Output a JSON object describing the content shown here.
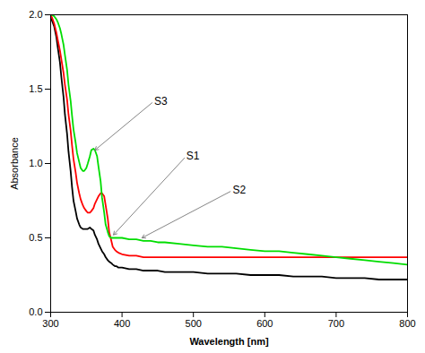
{
  "chart_data": {
    "type": "line",
    "x_label": "Wavelength [nm]",
    "y_label": "Absorbance",
    "xlim": [
      300,
      800
    ],
    "ylim": [
      0.0,
      2.0
    ],
    "xticks": [
      300,
      400,
      500,
      600,
      700,
      800
    ],
    "yticks": [
      {
        "value": 0.0,
        "label": "0.0"
      },
      0.5,
      {
        "value": 1.0,
        "label": "1.0"
      },
      1.5,
      {
        "value": 2.0,
        "label": "2.0"
      }
    ],
    "x": [
      300,
      302,
      305,
      308,
      310,
      313,
      315,
      318,
      320,
      323,
      325,
      328,
      330,
      332,
      335,
      337,
      340,
      342,
      345,
      347,
      350,
      352,
      355,
      357,
      360,
      362,
      365,
      367,
      370,
      372,
      375,
      377,
      380,
      382,
      385,
      387,
      390,
      392,
      395,
      400,
      410,
      420,
      430,
      440,
      450,
      460,
      480,
      500,
      520,
      540,
      560,
      580,
      600,
      620,
      640,
      660,
      680,
      700,
      720,
      740,
      760,
      780,
      800
    ],
    "series": [
      {
        "color": "#000000",
        "values": [
          1.98,
          1.96,
          1.92,
          1.85,
          1.78,
          1.68,
          1.58,
          1.45,
          1.33,
          1.2,
          1.08,
          0.95,
          0.84,
          0.75,
          0.68,
          0.63,
          0.59,
          0.57,
          0.56,
          0.56,
          0.56,
          0.56,
          0.57,
          0.56,
          0.55,
          0.52,
          0.49,
          0.46,
          0.43,
          0.41,
          0.39,
          0.37,
          0.35,
          0.34,
          0.33,
          0.32,
          0.31,
          0.31,
          0.3,
          0.3,
          0.29,
          0.29,
          0.28,
          0.28,
          0.28,
          0.27,
          0.27,
          0.27,
          0.26,
          0.26,
          0.26,
          0.25,
          0.25,
          0.25,
          0.24,
          0.24,
          0.24,
          0.23,
          0.23,
          0.23,
          0.22,
          0.22,
          0.22
        ]
      },
      {
        "color": "#ff0000",
        "values": [
          2.0,
          1.98,
          1.94,
          1.88,
          1.83,
          1.76,
          1.7,
          1.61,
          1.53,
          1.43,
          1.33,
          1.22,
          1.12,
          1.03,
          0.94,
          0.87,
          0.8,
          0.76,
          0.72,
          0.7,
          0.68,
          0.67,
          0.67,
          0.68,
          0.7,
          0.73,
          0.76,
          0.78,
          0.8,
          0.8,
          0.78,
          0.72,
          0.63,
          0.54,
          0.48,
          0.44,
          0.42,
          0.41,
          0.4,
          0.39,
          0.38,
          0.38,
          0.37,
          0.37,
          0.37,
          0.37,
          0.37,
          0.37,
          0.37,
          0.37,
          0.37,
          0.37,
          0.37,
          0.37,
          0.37,
          0.37,
          0.37,
          0.37,
          0.37,
          0.37,
          0.37,
          0.37,
          0.37
        ]
      },
      {
        "color": "#00dd00",
        "values": [
          2.0,
          2.0,
          1.99,
          1.97,
          1.95,
          1.91,
          1.87,
          1.8,
          1.73,
          1.63,
          1.53,
          1.42,
          1.32,
          1.23,
          1.14,
          1.07,
          1.01,
          0.97,
          0.95,
          0.95,
          0.97,
          1.0,
          1.05,
          1.09,
          1.1,
          1.09,
          1.05,
          0.98,
          0.88,
          0.77,
          0.67,
          0.59,
          0.54,
          0.51,
          0.5,
          0.5,
          0.5,
          0.5,
          0.5,
          0.5,
          0.49,
          0.49,
          0.48,
          0.48,
          0.47,
          0.47,
          0.46,
          0.45,
          0.44,
          0.44,
          0.43,
          0.42,
          0.41,
          0.41,
          0.4,
          0.39,
          0.38,
          0.37,
          0.36,
          0.35,
          0.34,
          0.33,
          0.32
        ]
      }
    ],
    "annotations": [
      {
        "text": "S3",
        "x": 445,
        "y": 1.42,
        "arrow_x": 362,
        "arrow_y": 1.09
      },
      {
        "text": "S1",
        "x": 490,
        "y": 1.05,
        "arrow_x": 388,
        "arrow_y": 0.52
      },
      {
        "text": "S2",
        "x": 555,
        "y": 0.82,
        "arrow_x": 428,
        "arrow_y": 0.5
      }
    ]
  }
}
